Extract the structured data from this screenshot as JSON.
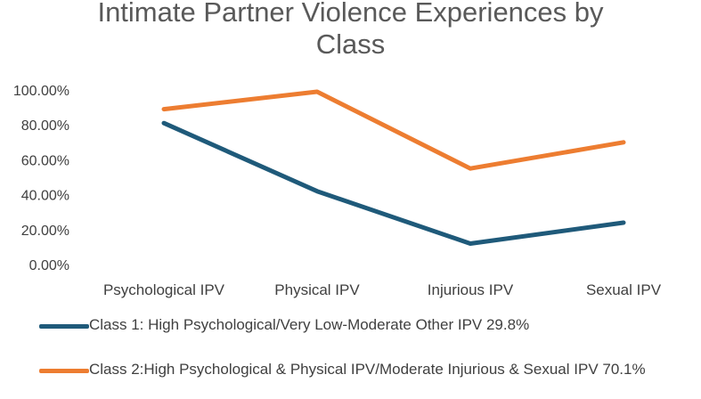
{
  "chart_data": {
    "type": "line",
    "title_line1": "Intimate Partner Violence Experiences by",
    "title_line2": "Class",
    "categories": [
      "Psychological IPV",
      "Physical IPV",
      "Injurious IPV",
      "Sexual IPV"
    ],
    "y_ticks": [
      "100.00%",
      "80.00%",
      "60.00%",
      "40.00%",
      "20.00%",
      "0.00%"
    ],
    "ylim": [
      0,
      100
    ],
    "grid": false,
    "legend_position": "bottom",
    "series": [
      {
        "name": "Class 1: High Psychological/Very Low-Moderate Other IPV 29.8%",
        "color": "#1f5a7a",
        "values": [
          81,
          42,
          12,
          24
        ]
      },
      {
        "name": "Class 2:High Psychological & Physical IPV/Moderate Injurious & Sexual IPV 70.1%",
        "color": "#ed7d31",
        "values": [
          89,
          99,
          55,
          70
        ]
      }
    ]
  }
}
